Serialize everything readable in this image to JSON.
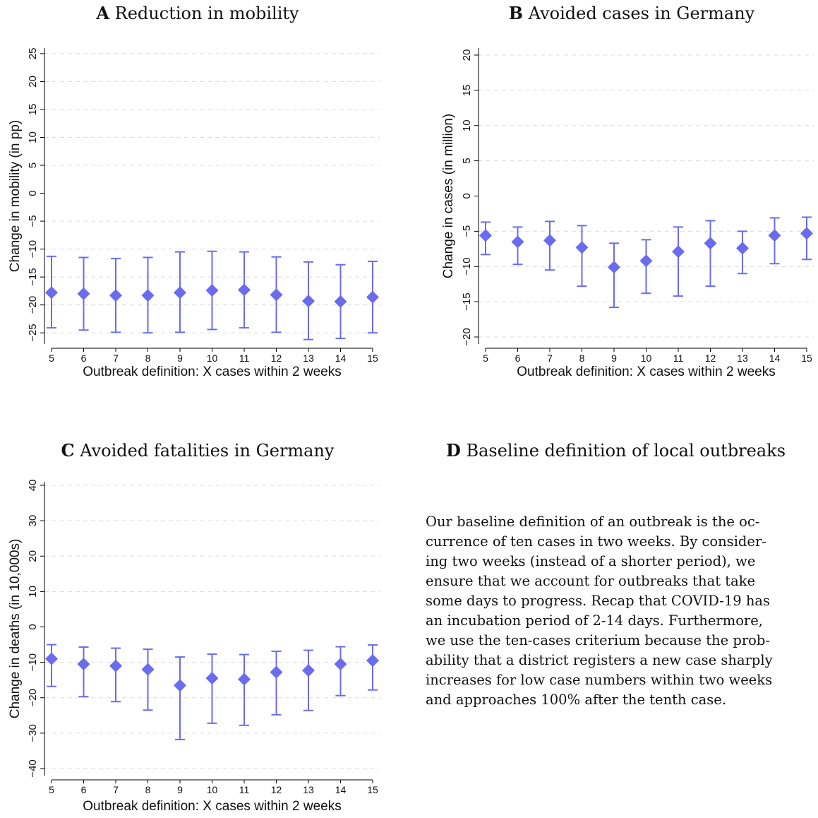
{
  "panels": {
    "a": {
      "letter": "A",
      "title": "Reduction in mobility"
    },
    "b": {
      "letter": "B",
      "title": "Avoided cases in Germany"
    },
    "c": {
      "letter": "C",
      "title": "Avoided fatalities in Germany"
    },
    "d": {
      "letter": "D",
      "title": "Baseline definition of local outbreaks",
      "text_lines": [
        "Our baseline definition of an outbreak is the oc-",
        "currence of ten cases in two weeks. By consider-",
        "ing two weeks (instead of a shorter period), we",
        "ensure that we account for outbreaks that take",
        "some days to progress. Recap that COVID-19 has",
        "an incubation period of 2-14 days. Furthermore,",
        "we use the ten-cases criterium because the prob-",
        "ability that a district registers a new case sharply",
        "increases for low case numbers within two weeks",
        "and approaches 100% after the tenth case."
      ]
    }
  },
  "colors": {
    "marker": "#6b6bf0",
    "grid": "#dcdcdc",
    "axis": "#000000"
  },
  "chart_data": [
    {
      "type": "scatter",
      "title": "Reduction in mobility",
      "xlabel": "Outbreak definition: X cases within 2 weeks",
      "ylabel": "Change in mobility (in pp)",
      "x": [
        5,
        6,
        7,
        8,
        9,
        10,
        11,
        12,
        13,
        14,
        15
      ],
      "y": [
        -17.8,
        -18.0,
        -18.3,
        -18.3,
        -17.8,
        -17.4,
        -17.3,
        -18.2,
        -19.3,
        -19.4,
        -18.6
      ],
      "ci_low": [
        -24.1,
        -24.5,
        -24.9,
        -25.0,
        -24.9,
        -24.4,
        -24.1,
        -24.9,
        -26.2,
        -26.0,
        -25.0
      ],
      "ci_high": [
        -11.3,
        -11.5,
        -11.7,
        -11.5,
        -10.5,
        -10.4,
        -10.5,
        -11.4,
        -12.3,
        -12.8,
        -12.2
      ],
      "xlim": [
        5,
        15
      ],
      "ylim": [
        -27,
        26
      ],
      "yticks": [
        -25,
        -20,
        -15,
        -10,
        -5,
        0,
        5,
        10,
        15,
        20,
        25
      ],
      "xticks": [
        5,
        6,
        7,
        8,
        9,
        10,
        11,
        12,
        13,
        14,
        15
      ],
      "grid": true
    },
    {
      "type": "scatter",
      "title": "Avoided cases in Germany",
      "xlabel": "Outbreak definition: X cases within 2 weeks",
      "ylabel": "Change in cases (in million)",
      "x": [
        5,
        6,
        7,
        8,
        9,
        10,
        11,
        12,
        13,
        14,
        15
      ],
      "y": [
        -5.6,
        -6.5,
        -6.3,
        -7.3,
        -10.1,
        -9.2,
        -7.9,
        -6.7,
        -7.4,
        -5.6,
        -5.3
      ],
      "ci_low": [
        -8.3,
        -9.7,
        -10.5,
        -12.8,
        -15.8,
        -13.8,
        -14.2,
        -12.8,
        -11.0,
        -9.6,
        -9.0
      ],
      "ci_high": [
        -3.7,
        -4.4,
        -3.6,
        -4.2,
        -6.7,
        -6.2,
        -4.4,
        -3.5,
        -5.0,
        -3.1,
        -3.0
      ],
      "xlim": [
        5,
        15
      ],
      "ylim": [
        -21,
        21
      ],
      "yticks": [
        -20,
        -15,
        -10,
        -5,
        0,
        5,
        10,
        15,
        20
      ],
      "xticks": [
        5,
        6,
        7,
        8,
        9,
        10,
        11,
        12,
        13,
        14,
        15
      ],
      "grid": true
    },
    {
      "type": "scatter",
      "title": "Avoided fatalities in Germany",
      "xlabel": "Outbreak definition: X cases within 2 weeks",
      "ylabel": "Change in deaths (in 10,000s)",
      "x": [
        5,
        6,
        7,
        8,
        9,
        10,
        11,
        12,
        13,
        14,
        15
      ],
      "y": [
        -9.0,
        -10.5,
        -11.0,
        -12.0,
        -16.5,
        -14.5,
        -14.8,
        -12.8,
        -12.3,
        -10.5,
        -9.5
      ],
      "ci_low": [
        -16.8,
        -19.7,
        -21.1,
        -23.5,
        -31.8,
        -27.2,
        -27.8,
        -24.8,
        -23.6,
        -19.4,
        -17.8
      ],
      "ci_high": [
        -5.0,
        -5.7,
        -6.0,
        -6.3,
        -8.5,
        -7.7,
        -7.8,
        -6.9,
        -6.6,
        -5.6,
        -5.1
      ],
      "xlim": [
        5,
        15
      ],
      "ylim": [
        -42,
        41
      ],
      "yticks": [
        -40,
        -30,
        -20,
        -10,
        0,
        10,
        20,
        30,
        40
      ],
      "xticks": [
        5,
        6,
        7,
        8,
        9,
        10,
        11,
        12,
        13,
        14,
        15
      ],
      "grid": true
    }
  ]
}
